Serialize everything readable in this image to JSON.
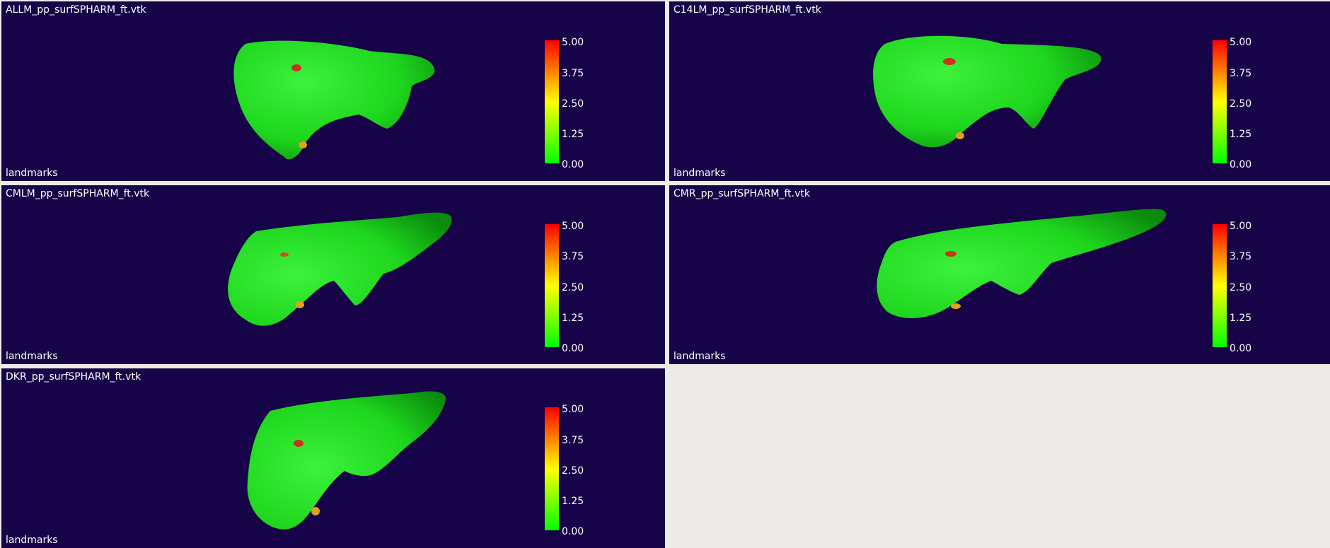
{
  "viewports": [
    {
      "id": "vp1",
      "title": "ALLM_pp_surfSPHARM_ft.vtk",
      "footer": "landmarks",
      "scalar_ticks": [
        "5.00",
        "3.75",
        "2.50",
        "1.25",
        "0.00"
      ]
    },
    {
      "id": "vp2",
      "title": "C14LM_pp_surfSPHARM_ft.vtk",
      "footer": "landmarks",
      "scalar_ticks": [
        "5.00",
        "3.75",
        "2.50",
        "1.25",
        "0.00"
      ]
    },
    {
      "id": "vp3",
      "title": "CMLM_pp_surfSPHARM_ft.vtk",
      "footer": "landmarks",
      "scalar_ticks": [
        "5.00",
        "3.75",
        "2.50",
        "1.25",
        "0.00"
      ]
    },
    {
      "id": "vp4",
      "title": "CMR_pp_surfSPHARM_ft.vtk",
      "footer": "landmarks",
      "scalar_ticks": [
        "5.00",
        "3.75",
        "2.50",
        "1.25",
        "0.00"
      ]
    },
    {
      "id": "vp5",
      "title": "DKR_pp_surfSPHARM_ft.vtk",
      "footer": "landmarks",
      "scalar_ticks": [
        "5.00",
        "3.75",
        "2.50",
        "1.25",
        "0.00"
      ]
    }
  ],
  "colors": {
    "viewport_background": "#170348",
    "surface": "#1ed61e",
    "landmark_high": "#c8341e",
    "landmark_mid": "#e0a020",
    "empty_panel": "#ecebe8"
  },
  "scalar_range": [
    0,
    5
  ]
}
